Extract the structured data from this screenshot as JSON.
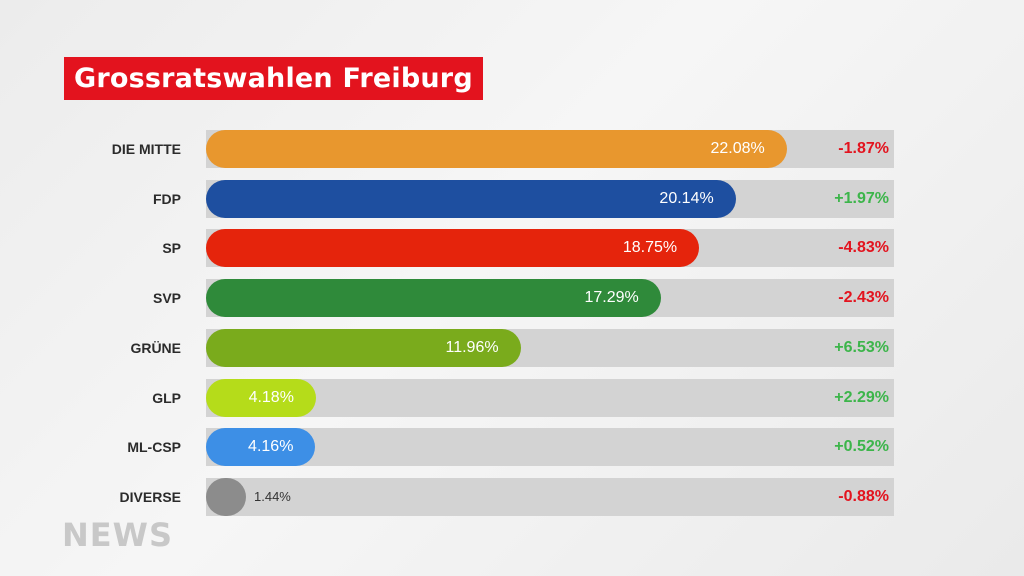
{
  "header": {
    "title": "Grossratswahlen Freiburg"
  },
  "logo": {
    "text": "NEWS"
  },
  "colors": {
    "positive": "#3cb54a",
    "negative": "#e3131e",
    "track": "#d3d3d3",
    "title_bg": "#e3131e"
  },
  "chart_data": {
    "type": "bar",
    "orientation": "horizontal",
    "title": "Grossratswahlen Freiburg",
    "categories": [
      "DIE MITTE",
      "FDP",
      "SP",
      "SVP",
      "GRÜNE",
      "GLP",
      "ML-CSP",
      "DIVERSE"
    ],
    "values": [
      22.08,
      20.14,
      18.75,
      17.29,
      11.96,
      4.18,
      4.16,
      1.44
    ],
    "value_labels": [
      "22.08%",
      "20.14%",
      "18.75%",
      "17.29%",
      "11.96%",
      "4.18%",
      "4.16%",
      "1.44%"
    ],
    "changes": [
      "-1.87%",
      "+1.97%",
      "-4.83%",
      "-2.43%",
      "+6.53%",
      "+2.29%",
      "+0.52%",
      "-0.88%"
    ],
    "bar_colors": [
      "#e8972e",
      "#1e4fa0",
      "#e5240c",
      "#2f8a3a",
      "#7aab1c",
      "#b5dc1a",
      "#3d8fe6",
      "#8c8c8c"
    ],
    "xlim": [
      0,
      26
    ],
    "grid": false,
    "legend": "none"
  }
}
